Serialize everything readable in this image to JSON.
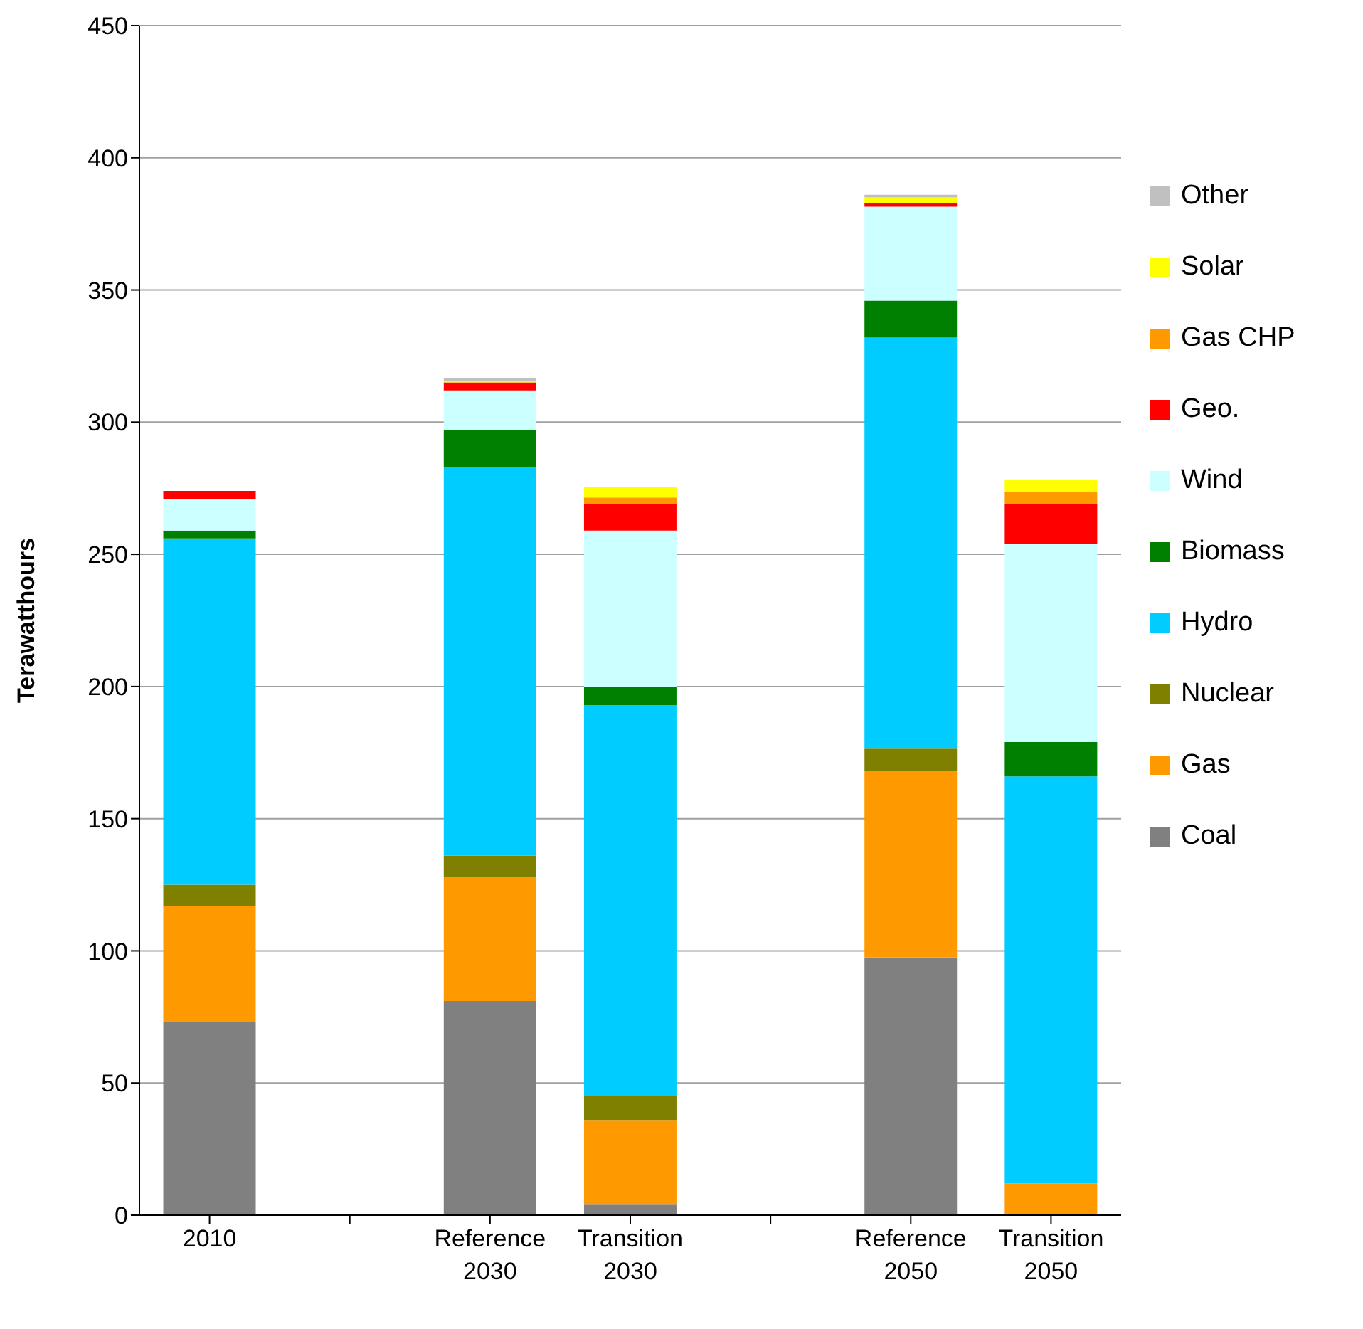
{
  "chart_data": {
    "type": "bar",
    "stacked": true,
    "ylabel": "Terawatthours",
    "categories": [
      "2010",
      null,
      "Reference 2030",
      "Transition 2030",
      null,
      "Reference 2050",
      "Transition 2050"
    ],
    "ylim": [
      0,
      450
    ],
    "yticks": [
      0,
      50,
      100,
      150,
      200,
      250,
      300,
      350,
      400,
      450
    ],
    "grid": "y",
    "legend": "right",
    "series": [
      {
        "name": "Coal",
        "color": "#808080",
        "values": [
          73,
          null,
          81,
          4,
          null,
          97.5,
          0
        ]
      },
      {
        "name": "Gas",
        "color": "#ff9900",
        "values": [
          44,
          null,
          47,
          32,
          null,
          70.5,
          12
        ]
      },
      {
        "name": "Nuclear",
        "color": "#808000",
        "values": [
          8,
          null,
          8,
          9,
          null,
          8.5,
          0
        ]
      },
      {
        "name": "Hydro",
        "color": "#00ccff",
        "values": [
          131,
          null,
          147,
          148,
          null,
          155.5,
          154
        ]
      },
      {
        "name": "Biomass",
        "color": "#008000",
        "values": [
          3,
          null,
          14,
          7,
          null,
          14,
          13
        ]
      },
      {
        "name": "Wind",
        "color": "#ccffff",
        "values": [
          12,
          null,
          15,
          59,
          null,
          35.5,
          75
        ]
      },
      {
        "name": "Geo.",
        "color": "#ff0000",
        "values": [
          3,
          null,
          3,
          10,
          null,
          1.5,
          15
        ]
      },
      {
        "name": "Gas CHP",
        "color": "#ff9900",
        "values": [
          0,
          null,
          0,
          2.5,
          null,
          0,
          4.5
        ]
      },
      {
        "name": "Solar",
        "color": "#ffff00",
        "values": [
          0,
          null,
          0.5,
          4,
          null,
          2,
          4.5
        ]
      },
      {
        "name": "Other",
        "color": "#c0c0c0",
        "values": [
          0,
          null,
          1,
          0,
          null,
          1,
          0
        ]
      }
    ]
  }
}
